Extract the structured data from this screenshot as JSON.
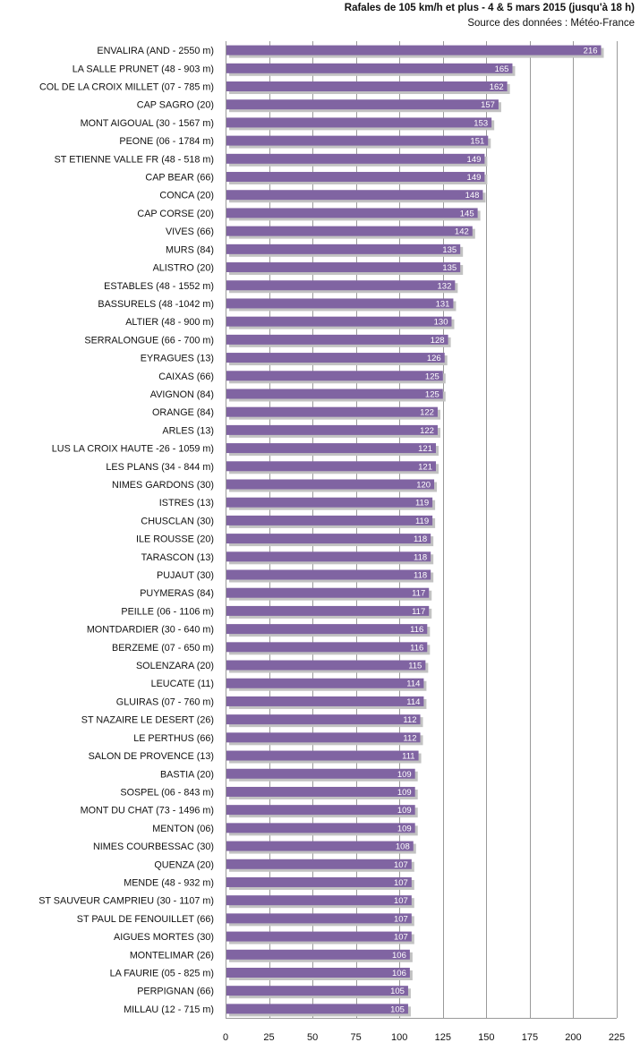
{
  "title": "Rafales de 105 km/h et plus - 4 & 5 mars 2015 (jusqu'à 18 h)",
  "subtitle": "Source des données : Météo-France",
  "colors": {
    "bar": "#8064A2",
    "bar_shadow": "#c2c2c2",
    "grid": "#9a9a9a"
  },
  "chart_data": {
    "type": "bar",
    "orientation": "horizontal",
    "title": "Rafales de 105 km/h et plus - 4 & 5 mars 2015 (jusqu'à 18 h)",
    "subtitle": "Source des données : Météo-France",
    "xlabel": "",
    "ylabel": "",
    "xlim": [
      0,
      225
    ],
    "xticks": [
      0,
      25,
      50,
      75,
      100,
      125,
      150,
      175,
      200,
      225
    ],
    "grid": "vertical",
    "categories": [
      "ENVALIRA (AND - 2550 m)",
      "LA SALLE PRUNET (48 - 903 m)",
      "COL DE LA CROIX MILLET (07 - 785 m)",
      "CAP SAGRO (20)",
      "MONT AIGOUAL (30 - 1567 m)",
      "PEONE (06 - 1784 m)",
      "ST ETIENNE  VALLE FR (48 - 518 m)",
      "CAP BEAR (66)",
      "CONCA (20)",
      "CAP CORSE (20)",
      "VIVES (66)",
      "MURS (84)",
      "ALISTRO (20)",
      "ESTABLES (48 - 1552 m)",
      "BASSURELS (48  -1042 m)",
      "ALTIER (48 - 900 m)",
      "SERRALONGUE (66 - 700 m)",
      "EYRAGUES  (13)",
      "CAIXAS (66)",
      "AVIGNON (84)",
      "ORANGE (84)",
      "ARLES (13)",
      "LUS LA CROIX HAUTE  -26 - 1059 m)",
      "LES PLANS (34 - 844 m)",
      "NIMES GARDONS (30)",
      "ISTRES (13)",
      "CHUSCLAN (30)",
      "ILE ROUSSE  (20)",
      "TARASCON (13)",
      "PUJAUT (30)",
      "PUYMERAS (84)",
      "PEILLE (06 - 1106 m)",
      "MONTDARDIER  (30 - 640 m)",
      "BERZEME (07 - 650 m)",
      "SOLENZARA (20)",
      "LEUCATE (11)",
      "GLUIRAS (07 - 760 m)",
      "ST NAZAIRE LE DESERT (26)",
      "LE PERTHUS  (66)",
      "SALON DE PROVENCE  (13)",
      "BASTIA (20)",
      "SOSPEL (06 - 843 m)",
      "MONT DU CHAT (73 - 1496 m)",
      "MENTON (06)",
      "NIMES COURBESSAC  (30)",
      "QUENZA  (20)",
      "MENDE (48 - 932 m)",
      "ST SAUVEUR  CAMPRIEU (30 - 1107 m)",
      "ST PAUL DE FENOUILLET  (66)",
      "AIGUES MORTES  (30)",
      "MONTELIMAR  (26)",
      "LA FAURIE  (05 - 825 m)",
      "PERPIGNAN  (66)",
      "MILLAU (12 - 715 m)"
    ],
    "values": [
      216,
      165,
      162,
      157,
      153,
      151,
      149,
      149,
      148,
      145,
      142,
      135,
      135,
      132,
      131,
      130,
      128,
      126,
      125,
      125,
      122,
      122,
      121,
      121,
      120,
      119,
      119,
      118,
      118,
      118,
      117,
      117,
      116,
      116,
      115,
      114,
      114,
      112,
      112,
      111,
      109,
      109,
      109,
      109,
      108,
      107,
      107,
      107,
      107,
      107,
      106,
      106,
      105,
      105
    ]
  }
}
